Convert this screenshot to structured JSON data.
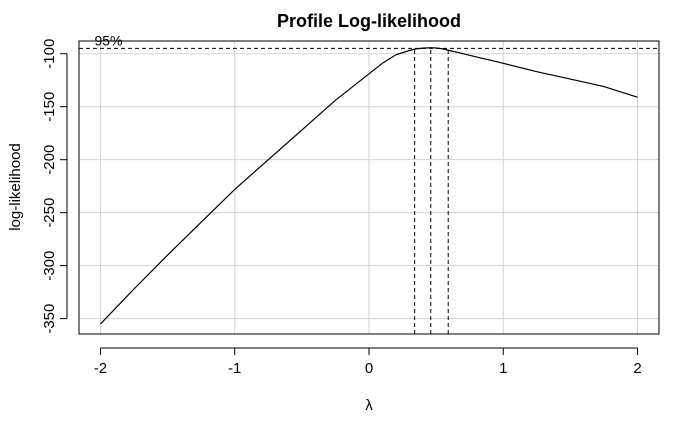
{
  "chart_data": {
    "type": "line",
    "title": "Profile Log-likelihood",
    "xlabel": "λ",
    "ylabel": "log-likelihood",
    "xlim": [
      -2.16,
      2.16
    ],
    "ylim": [
      -364.5,
      -88
    ],
    "x_ticks": [
      -2,
      -1,
      0,
      1,
      2
    ],
    "y_ticks": [
      -100,
      -150,
      -200,
      -250,
      -300,
      -350
    ],
    "grid": true,
    "series": [
      {
        "x": [
          -2.0,
          -1.75,
          -1.5,
          -1.25,
          -1.0,
          -0.75,
          -0.5,
          -0.25,
          0.0,
          0.1,
          0.2,
          0.3,
          0.35,
          0.4,
          0.46,
          0.5,
          0.55,
          0.6,
          0.7,
          0.8,
          0.9,
          1.0,
          1.25,
          1.5,
          1.75,
          2.0
        ],
        "y": [
          -355,
          -322,
          -290,
          -259,
          -228,
          -200,
          -172,
          -144,
          -119,
          -109,
          -101,
          -97,
          -95.5,
          -94.7,
          -94.3,
          -94.6,
          -95.5,
          -97,
          -100,
          -103,
          -106,
          -109,
          -117,
          -124,
          -131,
          -141
        ]
      }
    ],
    "ci_level": {
      "label": "95%",
      "y": -95
    }
  },
  "ci_lines": {
    "lower": 0.34,
    "mle": 0.46,
    "upper": 0.59
  }
}
